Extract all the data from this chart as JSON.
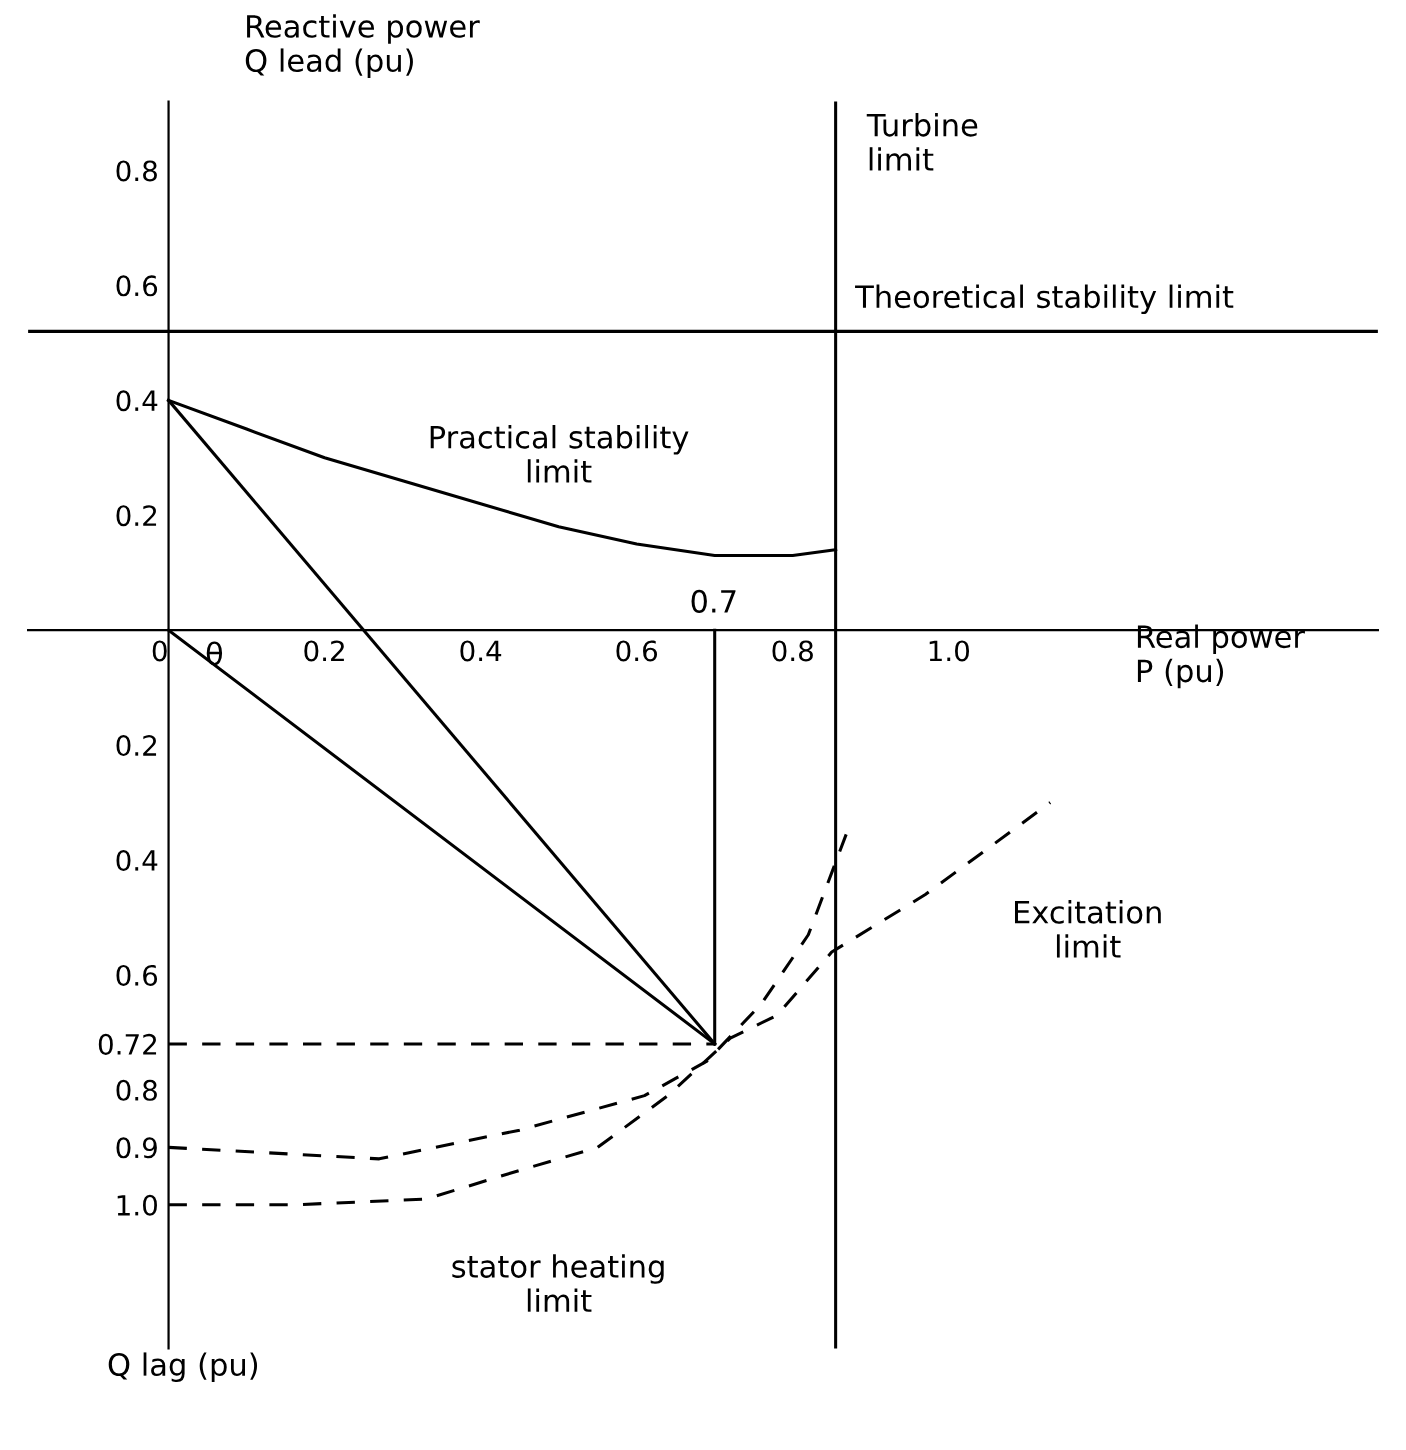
{
  "chart_data": {
    "type": "line",
    "ylabel": "Reactive power\nQ lead (pu)",
    "xlabel": "Real power\nP (pu)",
    "xlim": [
      -0.18,
      1.55
    ],
    "ylim": [
      -1.25,
      0.92
    ],
    "xticks": [
      {
        "value": 0,
        "label": "0"
      },
      0.2,
      0.4,
      0.6,
      0.8,
      {
        "value": 1.0,
        "label": "1.0"
      }
    ],
    "yticks": [
      0.8,
      0.6,
      0.4,
      0.2,
      {
        "value": -0.2,
        "label": "0.2"
      },
      {
        "value": -0.4,
        "label": "0.4"
      },
      {
        "value": -0.6,
        "label": "0.6"
      },
      {
        "value": -0.72,
        "label": "0.72"
      },
      {
        "value": -0.8,
        "label": "0.8"
      },
      {
        "value": -0.9,
        "label": "0.9"
      },
      {
        "value": -1.0,
        "label": "1.0"
      }
    ],
    "grid": false,
    "series": [
      {
        "color": "#000000",
        "x": [
          0,
          0.1,
          0.2,
          0.3,
          0.4,
          0.5,
          0.6,
          0.7,
          0.8,
          0.855
        ],
        "values": [
          0.4,
          0.35,
          0.3,
          0.26,
          0.22,
          0.18,
          0.15,
          0.13,
          0.13,
          0.14
        ]
      },
      {
        "color": "#000000",
        "x": [
          0,
          0.7
        ],
        "values": [
          0.4,
          -0.72
        ]
      },
      {
        "color": "#000000",
        "x": [
          0,
          0.7
        ],
        "values": [
          0,
          -0.72
        ]
      },
      {
        "color": "#000000",
        "x": [
          0.7,
          0.7
        ],
        "values": [
          0,
          -0.72
        ]
      },
      {
        "color": "#000000",
        "line_style": "dashed",
        "x": [
          0,
          0.7
        ],
        "values": [
          -0.72,
          -0.72
        ]
      },
      {
        "color": "#000000",
        "line_style": "dashed",
        "x": [
          0,
          0.27,
          0.45,
          0.61,
          0.69,
          0.76,
          0.82,
          0.87
        ],
        "values": [
          -0.9,
          -0.92,
          -0.87,
          -0.81,
          -0.75,
          -0.65,
          -0.53,
          -0.35
        ]
      },
      {
        "color": "#000000",
        "line_style": "dashed",
        "x": [
          0,
          0.16,
          0.33,
          0.45,
          0.55,
          0.64,
          0.72,
          0.78,
          0.85,
          0.97,
          1.13
        ],
        "values": [
          -1.0,
          -1.0,
          -0.99,
          -0.94,
          -0.9,
          -0.81,
          -0.71,
          -0.67,
          -0.56,
          -0.46,
          -0.3
        ]
      }
    ],
    "ref_lines": [
      {
        "axis": "y",
        "value": 0.52,
        "label": "Theoretical stability limit",
        "color": "#000000"
      },
      {
        "axis": "x",
        "value": 0.855,
        "label": "Turbine\nlimit",
        "color": "#000000"
      }
    ],
    "annotations": [
      "Practical stability\nlimit",
      "Excitation\nlimit",
      "stator heating\nlimit",
      "θ",
      "0.7",
      "Q lag (pu)"
    ]
  }
}
